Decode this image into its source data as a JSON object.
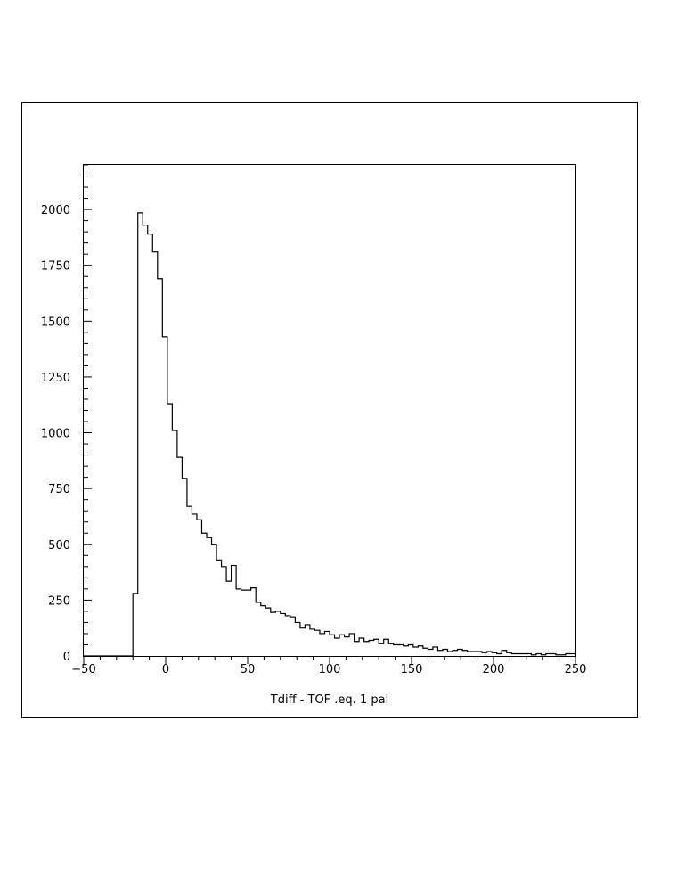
{
  "chart_data": {
    "type": "histogram",
    "xlabel": "Tdiff - TOF .eq. 1 pal",
    "ylabel": "",
    "title": "",
    "xlim": [
      -50,
      250
    ],
    "ylim": [
      0,
      2200
    ],
    "x_ticks": [
      -50,
      0,
      50,
      100,
      150,
      200,
      250
    ],
    "y_ticks": [
      0,
      250,
      500,
      750,
      1000,
      1250,
      1500,
      1750,
      2000
    ],
    "x_tick_labels": [
      "−50",
      "0",
      "50",
      "100",
      "150",
      "200",
      "250"
    ],
    "y_tick_labels": [
      "0",
      "250",
      "500",
      "750",
      "1000",
      "1250",
      "1500",
      "1750",
      "2000"
    ],
    "bin_width": 3,
    "bin_start": -20,
    "values": [
      280,
      1985,
      1930,
      1890,
      1810,
      1690,
      1430,
      1130,
      1010,
      890,
      795,
      670,
      635,
      610,
      550,
      530,
      500,
      430,
      400,
      335,
      405,
      300,
      295,
      295,
      305,
      240,
      225,
      215,
      195,
      200,
      190,
      180,
      175,
      150,
      125,
      140,
      120,
      115,
      100,
      110,
      95,
      80,
      95,
      85,
      100,
      65,
      80,
      65,
      70,
      75,
      55,
      75,
      55,
      50,
      50,
      45,
      50,
      40,
      45,
      35,
      30,
      40,
      25,
      30,
      20,
      25,
      30,
      25,
      20,
      20,
      20,
      15,
      20,
      15,
      10,
      25,
      15,
      10,
      10,
      10,
      10,
      5,
      10,
      5,
      10,
      10,
      5,
      5,
      10,
      10
    ],
    "grid": false,
    "line_color": "#000000"
  }
}
